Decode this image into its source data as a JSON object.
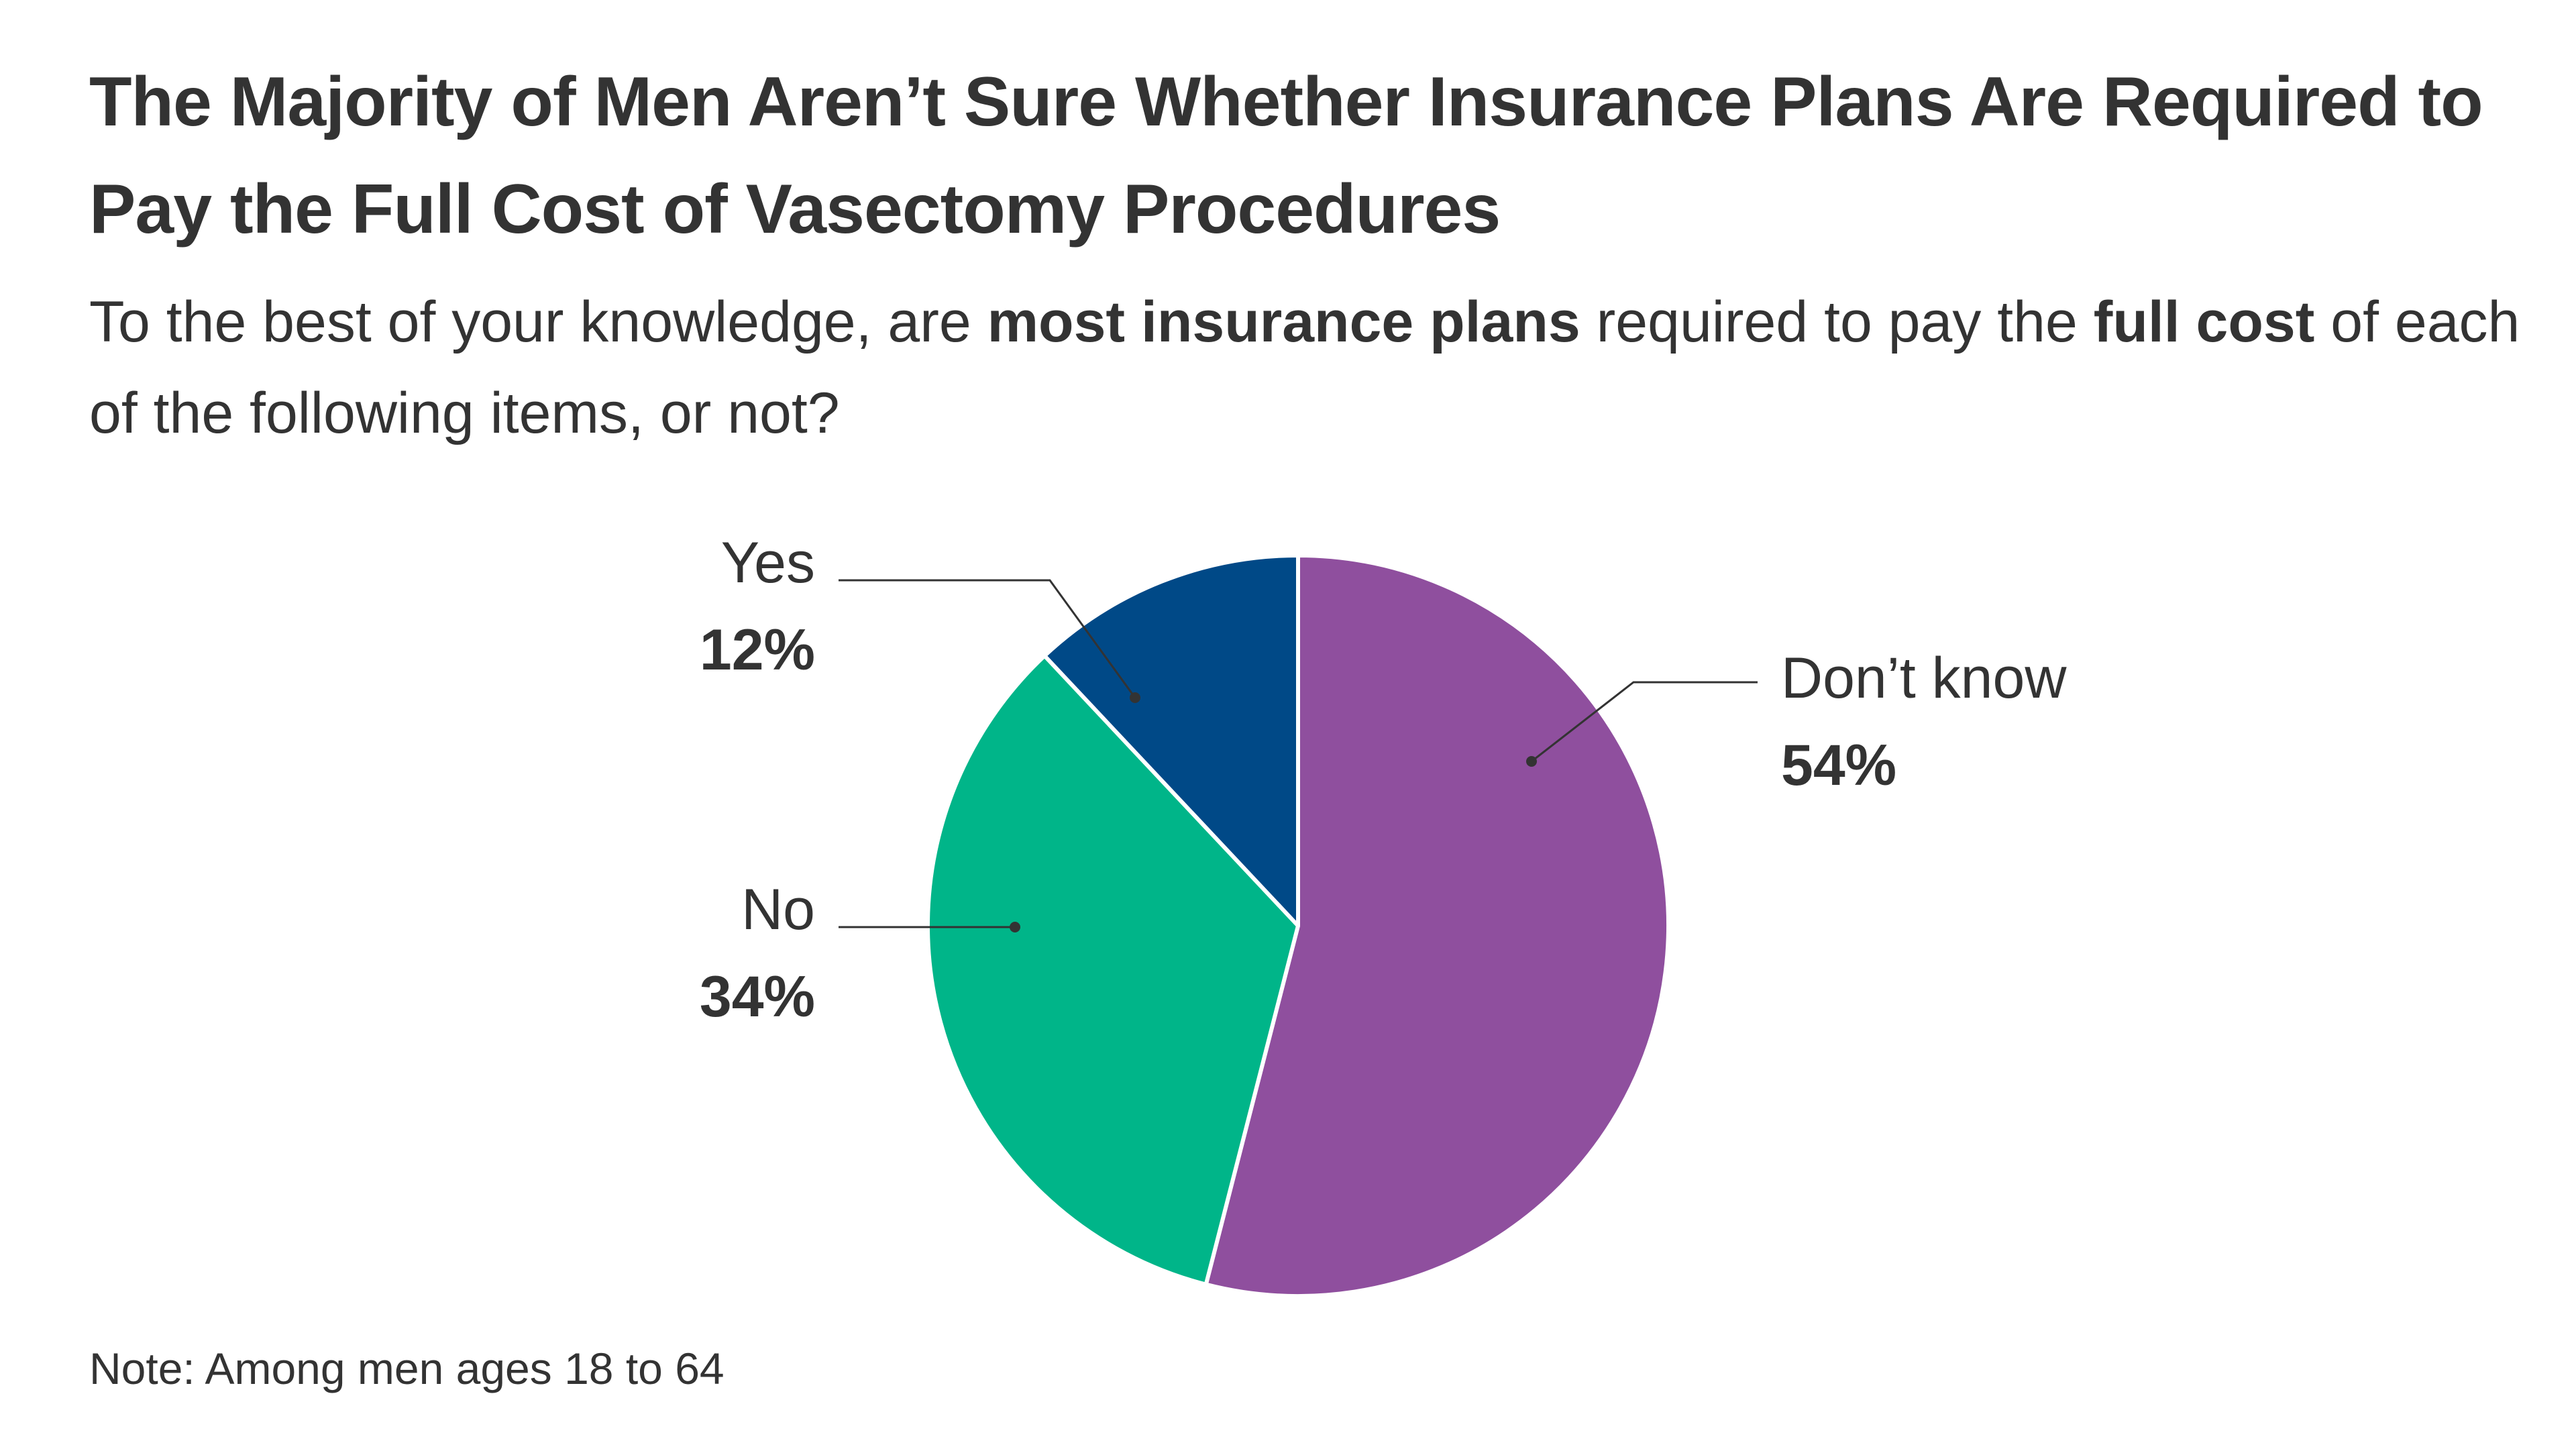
{
  "title": "The Majority of Men Aren’t Sure Whether Insurance Plans Are Required to Pay the Full Cost of Vasectomy Procedures",
  "subtitle": {
    "part1": "To the best of your knowledge, are ",
    "bold1": "most insurance plans",
    "part2": " required to pay the ",
    "bold2": "full cost",
    "part3": " of each of the following items, or not?"
  },
  "note": "Note: Among men ages 18 to 64",
  "chart_data": {
    "type": "pie",
    "start_angle_deg": 0,
    "direction": "clockwise",
    "slices": [
      {
        "name": "Don’t know",
        "value": 54,
        "label": "54%",
        "color": "#8f4f9e"
      },
      {
        "name": "No",
        "value": 34,
        "label": "34%",
        "color": "#00b589"
      },
      {
        "name": "Yes",
        "value": 12,
        "label": "12%",
        "color": "#004987"
      }
    ]
  }
}
